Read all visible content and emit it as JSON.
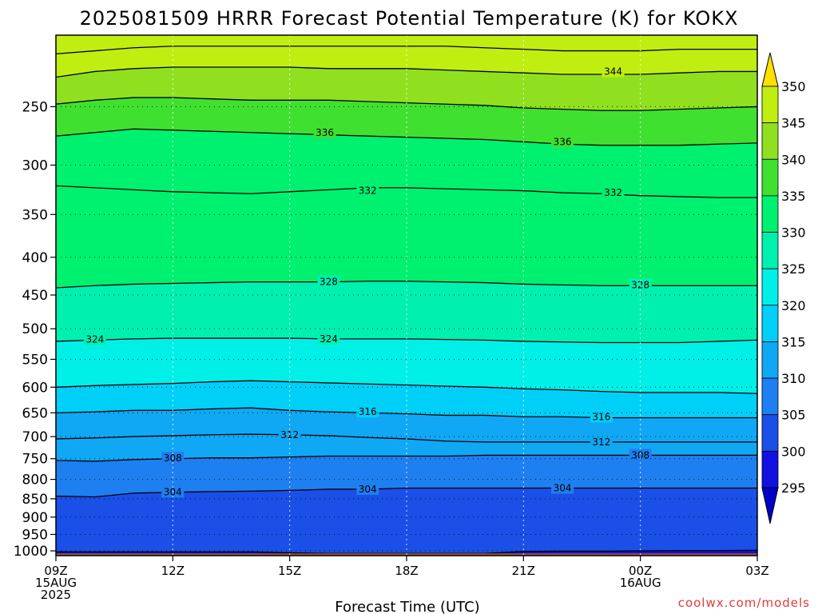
{
  "chart_data": {
    "type": "heatmap",
    "title": "2025081509 HRRR Forecast Potential Temperature (K) for KOKX",
    "xlabel": "Forecast Time (UTC)",
    "credit": "coolwx.com/models",
    "x_ticks": [
      {
        "hour": 0,
        "lines": [
          "09Z",
          "15AUG",
          "2025"
        ]
      },
      {
        "hour": 3,
        "lines": [
          "12Z"
        ]
      },
      {
        "hour": 6,
        "lines": [
          "15Z"
        ]
      },
      {
        "hour": 9,
        "lines": [
          "18Z"
        ]
      },
      {
        "hour": 12,
        "lines": [
          "21Z"
        ]
      },
      {
        "hour": 15,
        "lines": [
          "00Z",
          "16AUG"
        ]
      },
      {
        "hour": 18,
        "lines": [
          "03Z"
        ]
      }
    ],
    "xlim": [
      0,
      18
    ],
    "y_ticks": [
      250,
      300,
      350,
      400,
      450,
      500,
      550,
      600,
      650,
      700,
      750,
      800,
      850,
      900,
      950,
      1000
    ],
    "ylim_hPa": [
      1015,
      200
    ],
    "y_scale": "log-pressure",
    "colorbar": {
      "labels": [
        "350",
        "345",
        "340",
        "335",
        "330",
        "325",
        "320",
        "315",
        "310",
        "305",
        "300",
        "295"
      ],
      "levels": [
        295,
        300,
        305,
        310,
        315,
        320,
        325,
        330,
        335,
        340,
        345,
        350
      ],
      "colors": [
        "#1010e0",
        "#1a50e8",
        "#1e7ff0",
        "#10a8f4",
        "#00d0f8",
        "#00f0e8",
        "#00f0b0",
        "#00f070",
        "#40e030",
        "#90e020",
        "#c0ee10",
        "#ffff00"
      ],
      "under_color": "#0000c8",
      "over_color": "#ffe000"
    },
    "terrain_color": "#a0522d",
    "series": [
      {
        "level": 300,
        "pressure_hPa": [
          1003,
          1003,
          1003,
          1003,
          1003,
          1003,
          1006,
          1008,
          1008,
          1008,
          1008,
          1008,
          1002,
          1001,
          1001,
          1000,
          999,
          999,
          998
        ]
      },
      {
        "level": 304,
        "pressure_hPa": [
          843,
          845,
          835,
          833,
          831,
          830,
          828,
          825,
          825,
          822,
          822,
          822,
          822,
          822,
          822,
          822,
          822,
          822,
          822
        ]
      },
      {
        "level": 308,
        "pressure_hPa": [
          754,
          756,
          752,
          750,
          748,
          748,
          746,
          744,
          744,
          744,
          744,
          742,
          742,
          742,
          742,
          742,
          742,
          742,
          742
        ]
      },
      {
        "level": 312,
        "pressure_hPa": [
          705,
          703,
          700,
          698,
          696,
          695,
          696,
          698,
          702,
          705,
          710,
          712,
          712,
          712,
          712,
          712,
          712,
          712,
          712
        ]
      },
      {
        "level": 316,
        "pressure_hPa": [
          650,
          648,
          645,
          645,
          642,
          640,
          645,
          648,
          650,
          652,
          655,
          655,
          658,
          658,
          660,
          660,
          660,
          660,
          660
        ]
      },
      {
        "level": 320,
        "pressure_hPa": [
          600,
          597,
          595,
          593,
          590,
          588,
          590,
          592,
          594,
          596,
          598,
          600,
          603,
          605,
          608,
          610,
          610,
          610,
          612
        ]
      },
      {
        "level": 324,
        "pressure_hPa": [
          520,
          518,
          516,
          515,
          515,
          515,
          515,
          516,
          516,
          516,
          517,
          518,
          520,
          521,
          522,
          522,
          522,
          520,
          518
        ]
      },
      {
        "level": 328,
        "pressure_hPa": [
          440,
          437,
          435,
          434,
          433,
          432,
          432,
          432,
          431,
          431,
          432,
          433,
          435,
          436,
          437,
          437,
          437,
          437,
          437
        ]
      },
      {
        "level": 332,
        "pressure_hPa": [
          320,
          322,
          324,
          326,
          327,
          328,
          326,
          324,
          322,
          322,
          323,
          324,
          325,
          327,
          328,
          330,
          331,
          332,
          332
        ]
      },
      {
        "level": 336,
        "pressure_hPa": [
          274,
          271,
          268,
          269,
          270,
          271,
          272,
          273,
          274,
          275,
          276,
          277,
          279,
          281,
          282,
          282,
          282,
          281,
          280
        ]
      },
      {
        "level": 340,
        "pressure_hPa": [
          248,
          245,
          243,
          243,
          244,
          245,
          245,
          245,
          246,
          247,
          248,
          249,
          251,
          252,
          253,
          253,
          252,
          251,
          250
        ]
      },
      {
        "level": 344,
        "pressure_hPa": [
          228,
          224,
          222,
          221,
          221,
          221,
          221,
          222,
          222,
          222,
          223,
          224,
          225,
          226,
          226,
          226,
          225,
          224,
          224
        ]
      },
      {
        "level": 348,
        "pressure_hPa": [
          212,
          210,
          208,
          207,
          207,
          207,
          207,
          207,
          207,
          207,
          207,
          208,
          209,
          210,
          210,
          210,
          209,
          209,
          209
        ]
      }
    ],
    "contour_labels": [
      {
        "text": "344",
        "hour": 14.3,
        "pressure_hPa": 224
      },
      {
        "text": "336",
        "hour": 6.9,
        "pressure_hPa": 271
      },
      {
        "text": "336",
        "hour": 13.0,
        "pressure_hPa": 279
      },
      {
        "text": "332",
        "hour": 8.0,
        "pressure_hPa": 325
      },
      {
        "text": "332",
        "hour": 14.3,
        "pressure_hPa": 327
      },
      {
        "text": "328",
        "hour": 7.0,
        "pressure_hPa": 432
      },
      {
        "text": "328",
        "hour": 15.0,
        "pressure_hPa": 436
      },
      {
        "text": "324",
        "hour": 1.0,
        "pressure_hPa": 517
      },
      {
        "text": "324",
        "hour": 7.0,
        "pressure_hPa": 516
      },
      {
        "text": "316",
        "hour": 8.0,
        "pressure_hPa": 648
      },
      {
        "text": "316",
        "hour": 14.0,
        "pressure_hPa": 658
      },
      {
        "text": "312",
        "hour": 6.0,
        "pressure_hPa": 696
      },
      {
        "text": "312",
        "hour": 14.0,
        "pressure_hPa": 712
      },
      {
        "text": "308",
        "hour": 3.0,
        "pressure_hPa": 749
      },
      {
        "text": "308",
        "hour": 15.0,
        "pressure_hPa": 742
      },
      {
        "text": "304",
        "hour": 3.0,
        "pressure_hPa": 832
      },
      {
        "text": "304",
        "hour": 8.0,
        "pressure_hPa": 825
      },
      {
        "text": "304",
        "hour": 13.0,
        "pressure_hPa": 822
      }
    ],
    "grid": "dotted"
  }
}
